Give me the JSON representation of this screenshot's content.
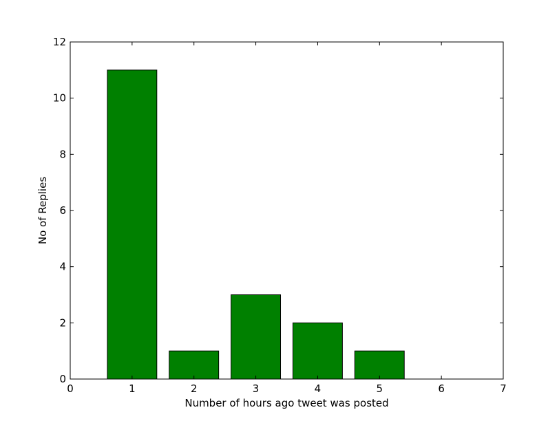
{
  "chart_data": {
    "type": "bar",
    "x": [
      1,
      2,
      3,
      4,
      5,
      6
    ],
    "values": [
      11,
      1,
      3,
      2,
      1,
      0
    ],
    "bar_color": "#008000",
    "edge_color": "#000000",
    "xlabel": "Number of hours ago tweet was posted",
    "ylabel": "No of Replies",
    "xlim": [
      0,
      7
    ],
    "ylim": [
      0,
      12
    ],
    "xticks": [
      0,
      1,
      2,
      3,
      4,
      5,
      6,
      7
    ],
    "yticks": [
      0,
      2,
      4,
      6,
      8,
      10,
      12
    ],
    "grid": false,
    "legend": "none"
  }
}
